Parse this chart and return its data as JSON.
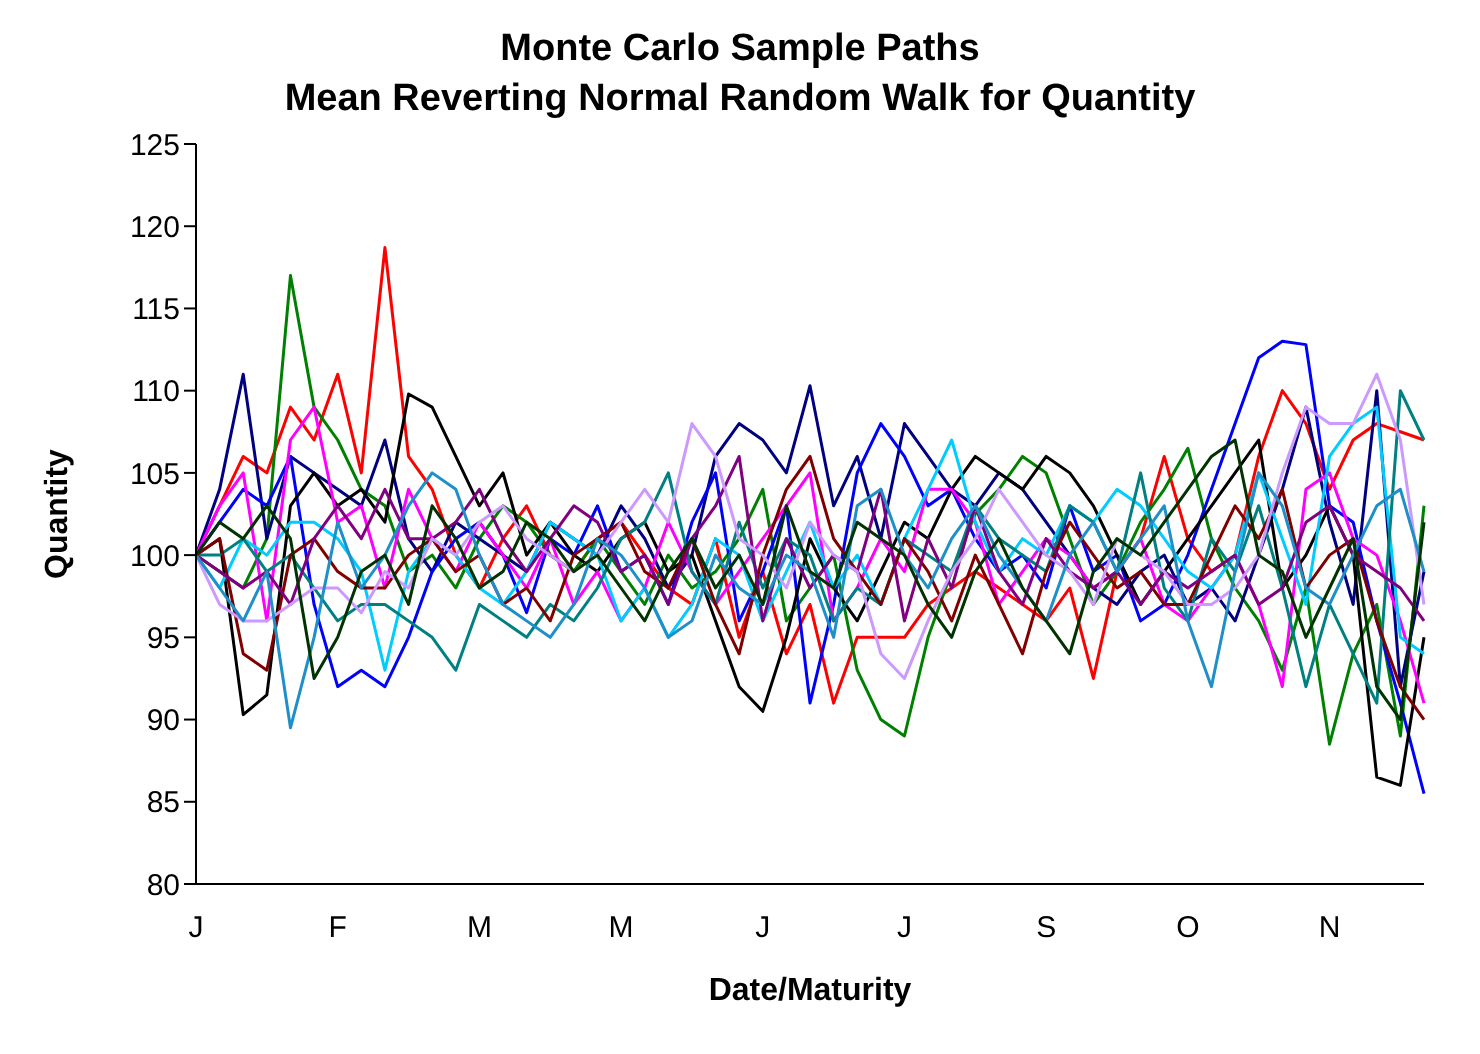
{
  "chart_data": {
    "type": "line",
    "title": "Monte Carlo Sample Paths\nMean Reverting Normal Random Walk for Quantity",
    "xlabel": "Date/Maturity",
    "ylabel": "Quantity",
    "categories": [
      "J",
      null,
      null,
      null,
      null,
      null,
      "F",
      null,
      null,
      null,
      null,
      null,
      "M",
      null,
      null,
      null,
      null,
      null,
      "M",
      null,
      null,
      null,
      null,
      null,
      "J",
      null,
      null,
      null,
      null,
      null,
      "J",
      null,
      null,
      null,
      null,
      null,
      "S",
      null,
      null,
      null,
      null,
      null,
      "O",
      null,
      null,
      null,
      null,
      null,
      "N",
      null,
      null,
      null,
      null
    ],
    "ylim": [
      80,
      125
    ],
    "yticks": [
      80,
      85,
      90,
      95,
      100,
      105,
      110,
      115,
      120,
      125
    ],
    "grid": false,
    "legend": false,
    "marker": "none",
    "line_style": "solid",
    "series": [
      {
        "color": "#ff0000",
        "values": [
          100,
          103,
          106,
          105,
          109,
          107,
          111,
          105,
          118.7,
          106,
          104,
          100,
          98,
          101,
          103,
          100,
          99,
          101,
          102,
          100,
          98,
          97,
          101,
          95,
          99,
          94,
          97,
          91,
          95,
          95,
          95,
          97,
          98,
          99,
          98,
          97,
          96,
          98,
          92.5,
          99,
          101,
          106,
          101,
          99,
          100,
          106,
          110,
          108,
          104,
          107,
          108,
          107.5,
          107
        ]
      },
      {
        "color": "#008000",
        "values": [
          100,
          99,
          98,
          101,
          117,
          109,
          107,
          104,
          103,
          99,
          100,
          98,
          101,
          103,
          102,
          100,
          99,
          101,
          99,
          97,
          100,
          98,
          99,
          101,
          104,
          96,
          98,
          100,
          93,
          90,
          89,
          95,
          99,
          102.5,
          104,
          106,
          105,
          101,
          97,
          99,
          102,
          104,
          106.5,
          101,
          98,
          96,
          93,
          98,
          88.5,
          94,
          97,
          89,
          103
        ]
      },
      {
        "color": "#000080",
        "values": [
          100,
          104,
          111,
          101,
          106,
          105,
          104,
          103,
          107,
          101,
          99,
          102,
          101,
          100,
          99,
          102,
          101,
          100,
          103,
          101,
          98,
          100,
          106,
          108,
          107,
          105,
          110.3,
          103,
          106,
          101,
          108,
          106,
          104,
          103,
          105,
          104,
          102,
          100,
          98,
          97,
          99,
          100,
          97,
          98,
          96,
          100,
          104,
          109,
          102,
          97,
          110,
          92,
          99
        ]
      },
      {
        "color": "#0000ff",
        "values": [
          100,
          102,
          104,
          103,
          106,
          97,
          92,
          93,
          92,
          95,
          99,
          101,
          102,
          100,
          96.5,
          101,
          100,
          103,
          99,
          100,
          97,
          102,
          105,
          96,
          99,
          103,
          91,
          97,
          105,
          108,
          106,
          103,
          104,
          101,
          99,
          100,
          98,
          103,
          99,
          100,
          96,
          97,
          100,
          104,
          108,
          112,
          113,
          112.8,
          103,
          102,
          96,
          91,
          85.5
        ]
      },
      {
        "color": "#000000",
        "values": [
          100,
          101,
          90.3,
          91.5,
          103,
          105,
          103,
          104,
          102,
          109.8,
          109,
          106,
          103,
          105,
          100,
          102,
          100,
          99,
          101,
          102,
          99,
          100,
          96,
          92,
          90.5,
          95,
          101,
          98,
          96,
          99,
          102,
          101,
          104,
          106,
          105,
          104,
          106,
          105,
          103,
          100,
          97,
          99,
          101,
          103,
          105,
          107,
          98,
          100,
          103,
          100,
          86.5,
          86,
          95
        ]
      },
      {
        "color": "#ff00ff",
        "values": [
          100,
          103,
          105,
          96,
          107,
          109,
          102,
          103,
          98,
          104,
          101,
          99,
          102,
          100,
          98,
          101,
          97,
          99,
          96,
          98,
          102,
          99,
          97,
          99,
          101,
          103,
          105,
          96,
          98,
          101,
          99,
          104,
          104,
          102,
          97,
          99,
          101,
          100,
          98,
          99,
          101,
          97,
          96,
          98,
          100,
          97,
          92,
          104,
          105,
          101,
          100,
          96,
          91
        ]
      },
      {
        "color": "#00ccff",
        "values": [
          100,
          98,
          101,
          100,
          102,
          102,
          101,
          99,
          93,
          99,
          101,
          100,
          98,
          97,
          99,
          102,
          101,
          100,
          96,
          98,
          95,
          97,
          101,
          100,
          96,
          99,
          102,
          98,
          100,
          97,
          101,
          104,
          107,
          102,
          99,
          101,
          100,
          103,
          102,
          104,
          103,
          101,
          99,
          98,
          100,
          105,
          101,
          97,
          106,
          108,
          109,
          95,
          94
        ]
      },
      {
        "color": "#008080",
        "values": [
          100,
          100,
          101,
          99,
          100,
          98,
          96,
          97,
          97,
          96,
          95,
          93,
          97,
          96,
          95,
          97,
          96,
          98,
          101,
          102,
          105,
          99,
          97,
          102,
          98,
          101,
          100,
          96,
          98,
          97,
          101,
          100,
          99,
          103,
          101,
          100,
          99,
          103,
          102,
          99,
          105,
          98,
          96,
          101,
          99,
          103,
          98,
          92,
          97,
          94,
          91,
          110,
          107
        ]
      },
      {
        "color": "#800000",
        "values": [
          100,
          101,
          94,
          93,
          100,
          101,
          99,
          98,
          98,
          100,
          101,
          99,
          100,
          97,
          98,
          96,
          100,
          101,
          102,
          99,
          98,
          101,
          97,
          94,
          100,
          104,
          106,
          101,
          99,
          97,
          101,
          99,
          96,
          100,
          97,
          94,
          99,
          102,
          100,
          98,
          99,
          97,
          97,
          100,
          103,
          101,
          104,
          98,
          100,
          101,
          96,
          92,
          90
        ]
      },
      {
        "color": "#800080",
        "values": [
          100,
          99,
          98,
          99,
          97,
          101,
          103,
          101,
          104,
          101,
          101,
          102,
          104,
          101,
          99,
          101,
          103,
          102,
          99,
          100,
          97,
          101,
          103,
          106,
          96,
          101,
          98,
          100,
          99,
          104,
          96,
          101,
          98,
          103,
          99,
          97,
          101,
          99,
          98,
          99,
          97,
          99,
          98,
          99,
          100,
          97,
          98,
          102,
          103,
          100,
          99,
          98,
          96
        ]
      },
      {
        "color": "#cc99ff",
        "values": [
          100,
          97,
          96,
          96,
          97,
          98,
          98,
          96.5,
          99,
          98,
          101,
          100,
          102,
          103,
          101,
          100,
          99,
          100,
          102,
          104,
          102,
          108,
          106,
          101,
          100,
          98,
          102,
          100,
          99,
          94,
          92.5,
          96,
          99,
          101,
          104,
          102,
          100,
          99,
          97,
          101,
          100,
          99,
          97,
          97,
          98,
          100,
          105,
          109,
          108,
          108,
          111,
          107,
          97
        ]
      },
      {
        "color": "#1e8fc8",
        "values": [
          100,
          98,
          96,
          99,
          89.5,
          95,
          102,
          98,
          100,
          103,
          105,
          104,
          100,
          97,
          96,
          95,
          97,
          101,
          100,
          98,
          95,
          96,
          100,
          98,
          97,
          100,
          99,
          95,
          103,
          104,
          100,
          98,
          101,
          103,
          100,
          98,
          96,
          100,
          102,
          99,
          101,
          103,
          96,
          92,
          99,
          105,
          103,
          98,
          97,
          100,
          103,
          104,
          99
        ]
      },
      {
        "color": "#003300",
        "values": [
          100,
          102,
          101,
          103,
          101,
          92.5,
          95,
          99,
          100,
          97,
          103,
          101,
          98,
          99,
          102,
          101,
          99,
          100,
          98,
          96,
          99,
          101,
          98,
          100,
          97,
          103,
          99,
          98,
          102,
          101,
          100,
          97,
          95,
          99,
          101,
          98,
          96,
          94,
          99,
          101,
          100,
          102,
          104,
          106,
          107,
          100,
          99,
          95,
          98,
          101,
          92,
          90,
          102
        ]
      }
    ]
  }
}
